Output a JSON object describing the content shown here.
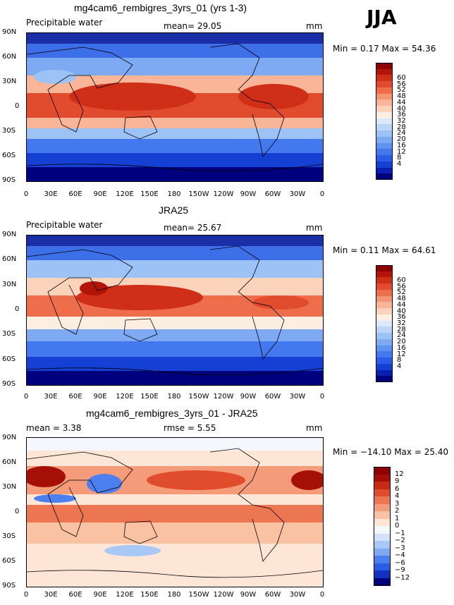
{
  "season": "JJA",
  "xticks": [
    "0",
    "30E",
    "60E",
    "90E",
    "120E",
    "150E",
    "180",
    "150W",
    "120W",
    "90W",
    "60W",
    "30W",
    "0"
  ],
  "yticks": [
    "90N",
    "60N",
    "30N",
    "0",
    "30S",
    "60S",
    "90S"
  ],
  "colors": {
    "abs": [
      "#00007f",
      "#0a1fb0",
      "#1540d4",
      "#2a5de6",
      "#4378ee",
      "#5f93f2",
      "#7eaaf4",
      "#9dc2f6",
      "#bcd6f8",
      "#dde9fa",
      "#fdeee2",
      "#fbd3bb",
      "#f8b597",
      "#f49473",
      "#ee6e4c",
      "#e24c2e",
      "#cf2e17",
      "#b21407",
      "#8c0303"
    ],
    "diff": [
      "#00007f",
      "#1232c4",
      "#2a5de6",
      "#4c80ef",
      "#7eaaf4",
      "#a8c8f7",
      "#d2e2fa",
      "#f4f7fc",
      "#fde6d6",
      "#f9c2a2",
      "#f49c7a",
      "#ec7651",
      "#df4d2d",
      "#c92a14",
      "#a50f05",
      "#8c0303"
    ]
  },
  "panels": [
    {
      "title": "mg4cam6_rembigres_3yrs_01 (yrs 1-3)",
      "left_label": "Precipitable water",
      "mid_label": "mean=  29.05",
      "units": "mm",
      "minmax": "Min =    0.17  Max =   54.36",
      "cbar_labels": [
        "60",
        "56",
        "52",
        "48",
        "44",
        "40",
        "36",
        "32",
        "28",
        "24",
        "20",
        "16",
        "12",
        "8",
        "4"
      ]
    },
    {
      "title": "JRA25",
      "left_label": "Precipitable water",
      "mid_label": "mean=  25.67",
      "units": "mm",
      "minmax": "Min =    0.11  Max =   64.61",
      "cbar_labels": [
        "60",
        "56",
        "52",
        "48",
        "44",
        "40",
        "36",
        "32",
        "28",
        "24",
        "20",
        "16",
        "12",
        "8",
        "4"
      ]
    },
    {
      "title": "mg4cam6_rembigres_3yrs_01 - JRA25",
      "left_label": "mean =    3.38",
      "mid_label": "rmse =    5.55",
      "units": "mm",
      "minmax": "Min = −14.10  Max =   25.40",
      "cbar_labels": [
        "12",
        "9",
        "6",
        "4",
        "3",
        "2",
        "1",
        "0",
        "−1",
        "−2",
        "−3",
        "−4",
        "−6",
        "−9",
        "−12"
      ]
    }
  ]
}
